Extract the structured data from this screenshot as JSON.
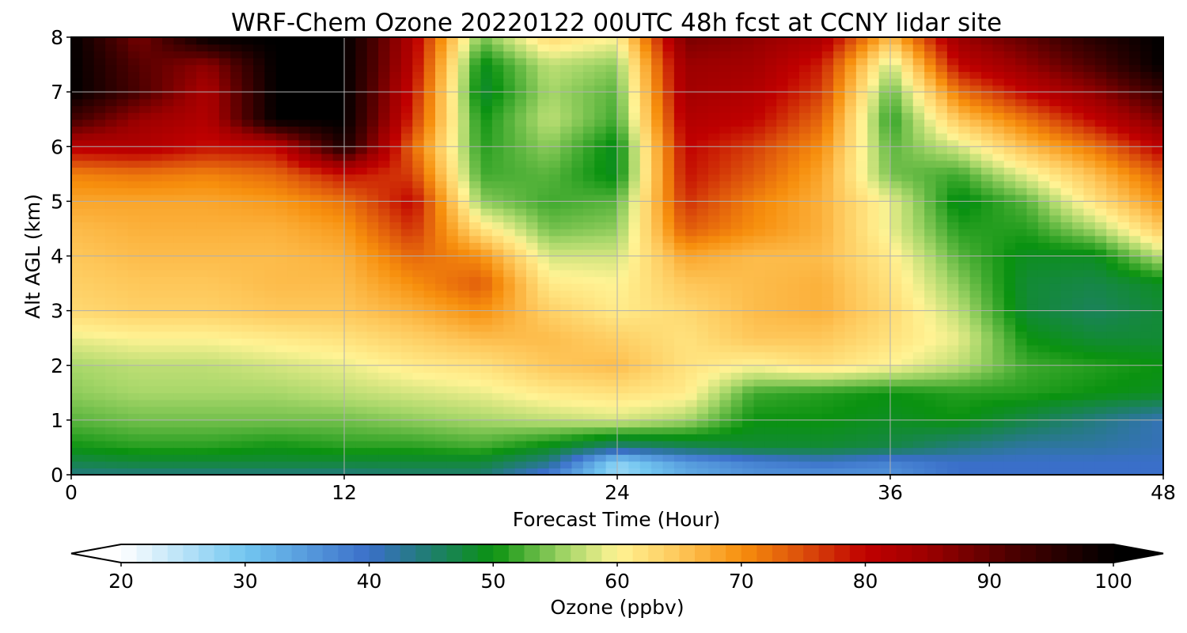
{
  "chart_data": {
    "type": "heatmap",
    "title": "WRF-Chem Ozone  20220122 00UTC 48h fcst at CCNY lidar site",
    "xlabel": "Forecast Time (Hour)",
    "ylabel": "Alt AGL (km)",
    "xlim": [
      0,
      48
    ],
    "ylim": [
      0,
      8
    ],
    "x_ticks": [
      0,
      12,
      24,
      36,
      48
    ],
    "y_ticks": [
      0,
      1,
      2,
      3,
      4,
      5,
      6,
      7,
      8
    ],
    "grid": true,
    "x": [
      0,
      3,
      6,
      9,
      12,
      15,
      18,
      21,
      24,
      27,
      30,
      33,
      36,
      39,
      42,
      45,
      48
    ],
    "y": [
      0,
      0.25,
      0.5,
      1,
      1.5,
      2,
      2.5,
      3,
      3.5,
      4,
      4.5,
      5,
      5.5,
      6,
      6.5,
      7,
      7.5,
      8
    ],
    "values": [
      [
        44,
        44,
        44,
        44,
        44,
        45,
        45,
        38,
        27,
        33,
        36,
        36,
        36,
        40,
        40,
        40,
        40
      ],
      [
        47,
        48,
        48,
        48,
        48,
        48,
        48,
        44,
        28,
        35,
        38,
        40,
        38,
        40,
        40,
        40,
        40
      ],
      [
        50,
        51,
        51,
        50,
        51,
        51,
        52,
        49,
        44,
        46,
        48,
        48,
        47,
        44,
        42,
        42,
        41
      ],
      [
        53,
        54,
        54,
        54,
        54,
        55,
        56,
        57,
        58,
        56,
        50,
        50,
        49,
        50,
        47,
        44,
        41
      ],
      [
        55,
        56,
        56,
        56,
        57,
        58,
        59,
        61,
        62,
        61,
        52,
        51,
        50,
        51,
        51,
        50,
        49
      ],
      [
        56,
        57,
        57,
        58,
        59,
        61,
        62,
        65,
        66,
        62,
        60,
        62,
        60,
        57,
        52,
        51,
        50
      ],
      [
        59,
        60,
        60,
        61,
        62,
        64,
        66,
        66,
        64,
        62,
        65,
        65,
        62,
        59,
        50,
        48,
        48
      ],
      [
        63,
        64,
        64,
        65,
        65,
        67,
        70,
        64,
        61,
        63,
        66,
        67,
        63,
        57,
        48,
        46,
        48
      ],
      [
        64,
        65,
        65,
        66,
        66,
        70,
        74,
        61,
        60,
        65,
        66,
        67,
        62,
        55,
        48,
        47,
        49
      ],
      [
        65,
        66,
        66,
        66,
        67,
        73,
        70,
        58,
        58,
        68,
        66,
        66,
        61,
        53,
        49,
        49,
        57
      ],
      [
        66,
        67,
        67,
        67,
        69,
        77,
        62,
        54,
        55,
        74,
        70,
        67,
        59,
        51,
        51,
        56,
        65
      ],
      [
        68,
        68,
        68,
        69,
        72,
        80,
        55,
        52,
        53,
        77,
        71,
        67,
        59,
        49,
        53,
        62,
        70
      ],
      [
        71,
        72,
        71,
        73,
        79,
        76,
        52,
        53,
        49,
        79,
        74,
        68,
        54,
        52,
        59,
        66,
        74
      ],
      [
        81,
        82,
        79,
        80,
        97,
        73,
        51,
        55,
        49,
        80,
        76,
        70,
        53,
        58,
        66,
        72,
        81
      ],
      [
        93,
        85,
        82,
        100,
        100,
        77,
        50,
        57,
        52,
        82,
        80,
        73,
        51,
        65,
        72,
        80,
        88
      ],
      [
        100,
        92,
        83,
        100,
        100,
        79,
        48,
        56,
        53,
        84,
        82,
        76,
        53,
        72,
        80,
        86,
        94
      ],
      [
        100,
        91,
        86,
        100,
        100,
        81,
        49,
        57,
        55,
        85,
        84,
        78,
        57,
        80,
        86,
        92,
        100
      ],
      [
        100,
        88,
        100,
        100,
        100,
        82,
        54,
        63,
        60,
        88,
        86,
        83,
        66,
        85,
        90,
        96,
        100
      ]
    ],
    "colorbar": {
      "label": "Ozone  (ppbv)",
      "min": 20,
      "max": 100,
      "ticks": [
        20,
        30,
        40,
        50,
        60,
        70,
        80,
        90,
        100
      ],
      "extend": "both",
      "stops": [
        {
          "value": 20,
          "color": "#ffffff"
        },
        {
          "value": 30,
          "color": "#72c6f0"
        },
        {
          "value": 40,
          "color": "#3a6fc9"
        },
        {
          "value": 45,
          "color": "#1f7e6e"
        },
        {
          "value": 50,
          "color": "#0a9210"
        },
        {
          "value": 56,
          "color": "#a8d76a"
        },
        {
          "value": 60,
          "color": "#fff394"
        },
        {
          "value": 65,
          "color": "#fec75a"
        },
        {
          "value": 70,
          "color": "#f78f0d"
        },
        {
          "value": 75,
          "color": "#db4e0b"
        },
        {
          "value": 80,
          "color": "#c00000"
        },
        {
          "value": 85,
          "color": "#9c0000"
        },
        {
          "value": 92,
          "color": "#4a0000"
        },
        {
          "value": 100,
          "color": "#000000"
        }
      ]
    }
  }
}
